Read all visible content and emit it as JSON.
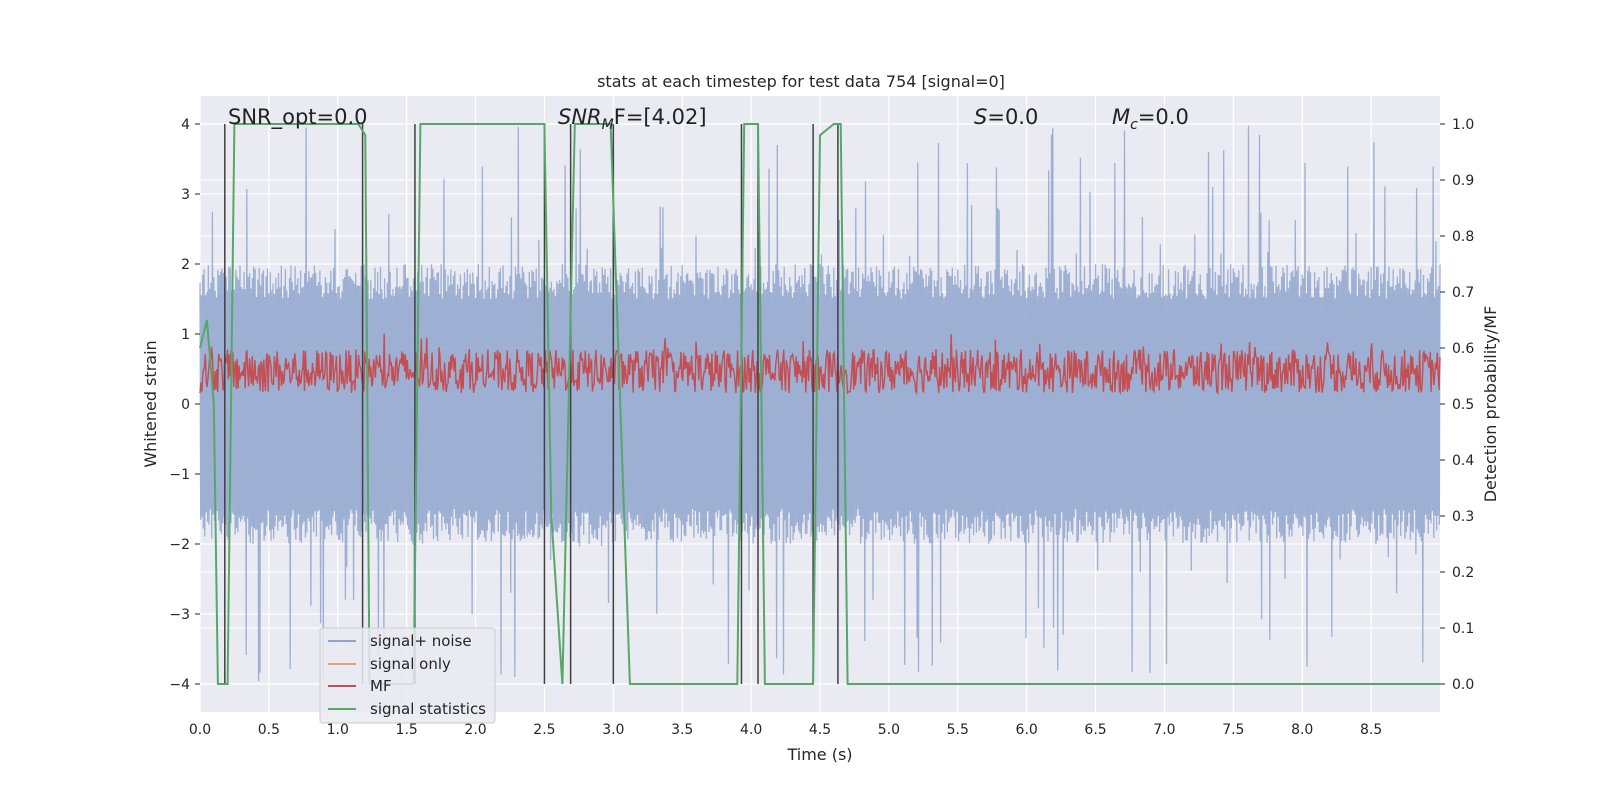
{
  "chart_data": {
    "type": "line",
    "title": "stats at each timestep for test data 754 [signal=0]",
    "xlabel": "Time (s)",
    "ylabel": "Whitened strain",
    "y2label": "Detection probability/MF",
    "xlim": [
      0.0,
      9.0
    ],
    "ylim": [
      -4.4,
      4.4
    ],
    "y2lim": [
      -0.05,
      1.05
    ],
    "xticks": [
      "0.0",
      "0.5",
      "1.0",
      "1.5",
      "2.0",
      "2.5",
      "3.0",
      "3.5",
      "4.0",
      "4.5",
      "5.0",
      "5.5",
      "6.0",
      "6.5",
      "7.0",
      "7.5",
      "8.0",
      "8.5"
    ],
    "xtick_values": [
      0.0,
      0.5,
      1.0,
      1.5,
      2.0,
      2.5,
      3.0,
      3.5,
      4.0,
      4.5,
      5.0,
      5.5,
      6.0,
      6.5,
      7.0,
      7.5,
      8.0,
      8.5
    ],
    "yticks": [
      "−4",
      "−3",
      "−2",
      "−1",
      "0",
      "1",
      "2",
      "3",
      "4"
    ],
    "ytick_values": [
      -4,
      -3,
      -2,
      -1,
      0,
      1,
      2,
      3,
      4
    ],
    "y2ticks": [
      "0.0",
      "0.1",
      "0.2",
      "0.3",
      "0.4",
      "0.5",
      "0.6",
      "0.7",
      "0.8",
      "0.9",
      "1.0"
    ],
    "y2tick_values": [
      0.0,
      0.1,
      0.2,
      0.3,
      0.4,
      0.5,
      0.6,
      0.7,
      0.8,
      0.9,
      1.0
    ],
    "grid": true,
    "legend_position": "bottom-left",
    "annotations": {
      "snr_opt": "SNR_opt=0.0",
      "snr_mf_sym": "SNR",
      "snr_mf_sub": "M",
      "snr_mf_rest": "F=[4.02]",
      "s_sym": "S",
      "s_rest": "=0.0",
      "mc_sym": "M",
      "mc_sub": "c",
      "mc_rest": "=0.0"
    },
    "series": [
      {
        "name": "signal+ noise",
        "color": "#8fa4cc",
        "kind": "noise",
        "envelope": 2.0,
        "spike_max": 4.0
      },
      {
        "name": "signal only",
        "color": "#e8a07c",
        "kind": "flat"
      },
      {
        "name": "MF",
        "color": "#c44e52",
        "kind": "mf",
        "base": 0.51,
        "range": [
          0.5,
          0.63
        ]
      },
      {
        "name": "signal statistics",
        "color": "#55a868",
        "axis": "right",
        "x": [
          0.0,
          0.05,
          0.1,
          0.13,
          0.17,
          0.2,
          0.25,
          1.15,
          1.2,
          1.23,
          1.55,
          1.6,
          2.5,
          2.55,
          2.63,
          2.72,
          2.8,
          2.98,
          3.12,
          3.9,
          3.95,
          4.05,
          4.1,
          4.45,
          4.5,
          4.6,
          4.65,
          4.7,
          9.0
        ],
        "y": [
          0.6,
          0.65,
          0.5,
          0.0,
          0.0,
          0.0,
          1.0,
          1.0,
          0.98,
          0.0,
          0.0,
          1.0,
          1.0,
          0.3,
          0.0,
          1.0,
          1.0,
          1.0,
          0.0,
          0.0,
          1.0,
          1.0,
          0.0,
          0.0,
          0.98,
          1.0,
          1.0,
          0.0,
          0.0
        ]
      },
      {
        "name": "",
        "color": "#404040",
        "kind": "vlines",
        "x": [
          0.18,
          1.18,
          1.56,
          2.5,
          2.69,
          3.0,
          3.93,
          4.05,
          4.45,
          4.63
        ]
      }
    ]
  }
}
